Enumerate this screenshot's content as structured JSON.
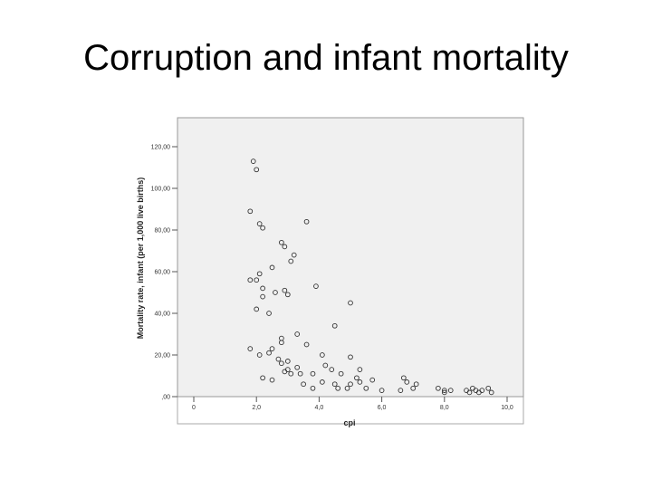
{
  "slide": {
    "title": "Corruption and infant mortality"
  },
  "chart_data": {
    "type": "scatter",
    "title": "",
    "xlabel": "cpi",
    "ylabel": "Mortality rate, infant (per 1,000 live births)",
    "xlim": [
      0,
      10
    ],
    "ylim": [
      0,
      120
    ],
    "x_ticks": [
      0,
      2,
      4,
      6,
      8,
      10
    ],
    "x_tick_labels": [
      "0",
      "2,0",
      "4,0",
      "6,0",
      "8,0",
      "10,0"
    ],
    "y_ticks": [
      0,
      20,
      40,
      60,
      80,
      100,
      120
    ],
    "y_tick_labels": [
      ",00",
      "20,00",
      "40,00",
      "60,00",
      "80,00",
      "100,00",
      "120,00"
    ],
    "grid": false,
    "marker": "hollow-circle",
    "colors": {
      "plot_bg": "#f0f0f0",
      "frame": "#999999",
      "marker": "#333333"
    },
    "points": [
      [
        1.9,
        113
      ],
      [
        2.0,
        109
      ],
      [
        1.8,
        89
      ],
      [
        2.1,
        83
      ],
      [
        2.2,
        81
      ],
      [
        3.6,
        84
      ],
      [
        2.8,
        74
      ],
      [
        2.9,
        72
      ],
      [
        3.2,
        68
      ],
      [
        3.1,
        65
      ],
      [
        2.5,
        62
      ],
      [
        2.1,
        59
      ],
      [
        2.0,
        56
      ],
      [
        1.8,
        56
      ],
      [
        2.2,
        52
      ],
      [
        2.9,
        51
      ],
      [
        2.6,
        50
      ],
      [
        3.0,
        49
      ],
      [
        2.2,
        48
      ],
      [
        3.9,
        53
      ],
      [
        5.0,
        45
      ],
      [
        2.0,
        42
      ],
      [
        2.4,
        40
      ],
      [
        4.5,
        34
      ],
      [
        3.3,
        30
      ],
      [
        2.8,
        28
      ],
      [
        2.8,
        26
      ],
      [
        3.6,
        25
      ],
      [
        1.8,
        23
      ],
      [
        2.5,
        23
      ],
      [
        2.4,
        21
      ],
      [
        2.1,
        20
      ],
      [
        4.1,
        20
      ],
      [
        5.0,
        19
      ],
      [
        2.7,
        18
      ],
      [
        2.8,
        16
      ],
      [
        3.0,
        17
      ],
      [
        4.2,
        15
      ],
      [
        4.4,
        13
      ],
      [
        5.3,
        13
      ],
      [
        3.3,
        14
      ],
      [
        3.0,
        13
      ],
      [
        2.9,
        12
      ],
      [
        3.1,
        11
      ],
      [
        3.4,
        11
      ],
      [
        3.8,
        11
      ],
      [
        4.7,
        11
      ],
      [
        2.2,
        9
      ],
      [
        2.5,
        8
      ],
      [
        5.2,
        9
      ],
      [
        5.7,
        8
      ],
      [
        6.7,
        9
      ],
      [
        4.1,
        7
      ],
      [
        3.5,
        6
      ],
      [
        4.5,
        6
      ],
      [
        5.0,
        6
      ],
      [
        5.3,
        7
      ],
      [
        6.8,
        7
      ],
      [
        7.1,
        6
      ],
      [
        3.8,
        4
      ],
      [
        4.6,
        4
      ],
      [
        4.9,
        4
      ],
      [
        5.5,
        4
      ],
      [
        6.0,
        3
      ],
      [
        6.6,
        3
      ],
      [
        7.0,
        4
      ],
      [
        7.8,
        4
      ],
      [
        8.0,
        3
      ],
      [
        8.2,
        3
      ],
      [
        8.7,
        3
      ],
      [
        8.9,
        4
      ],
      [
        9.0,
        3
      ],
      [
        9.2,
        3
      ],
      [
        9.4,
        4
      ],
      [
        8.0,
        2
      ],
      [
        8.8,
        2
      ],
      [
        9.1,
        2
      ],
      [
        9.5,
        2
      ]
    ]
  }
}
